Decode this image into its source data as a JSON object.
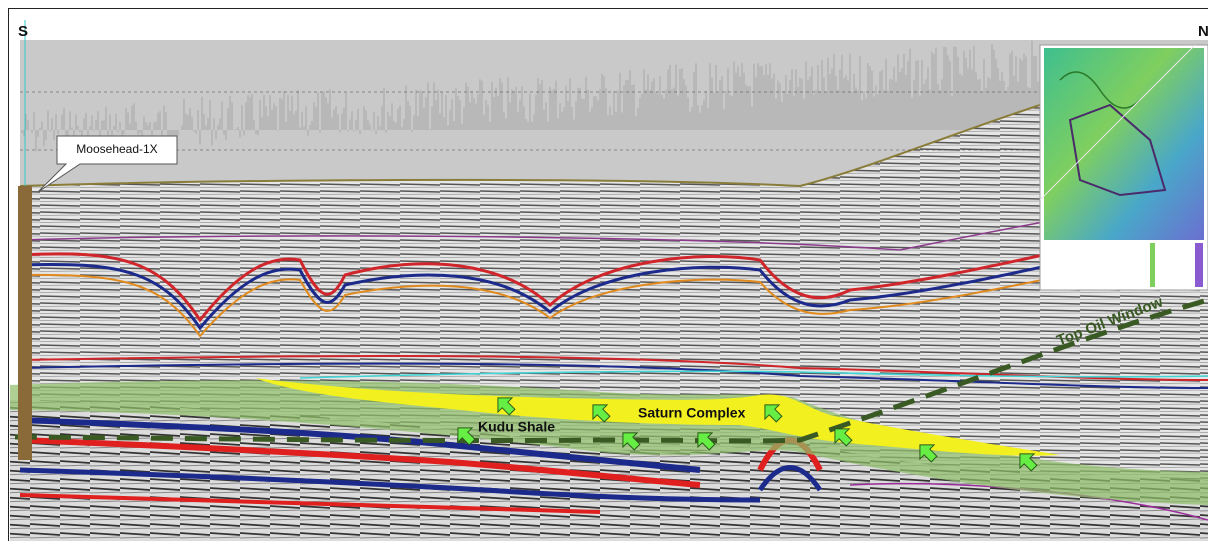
{
  "section": {
    "south_label": "S",
    "north_label": "N",
    "well_label": "Moosehead-1X",
    "top_oil_window_label": "Top Oil Window",
    "kudu_shale_label": "Kudu Shale",
    "saturn_complex_label": "Saturn Complex"
  }
}
